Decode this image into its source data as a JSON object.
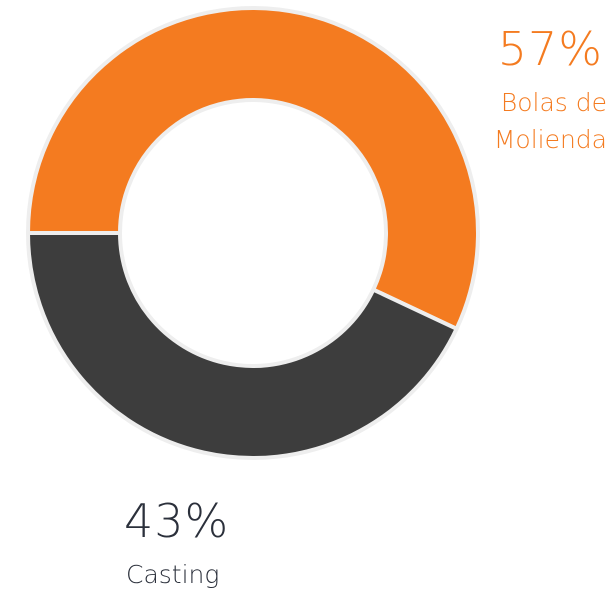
{
  "chart_data": {
    "type": "pie",
    "categories": [
      "Bolas de Molienda",
      "Casting"
    ],
    "values": [
      57,
      43
    ],
    "value_labels": [
      "57%",
      "43%"
    ],
    "colors": [
      "#f47b20",
      "#3d3d3d"
    ]
  }
}
